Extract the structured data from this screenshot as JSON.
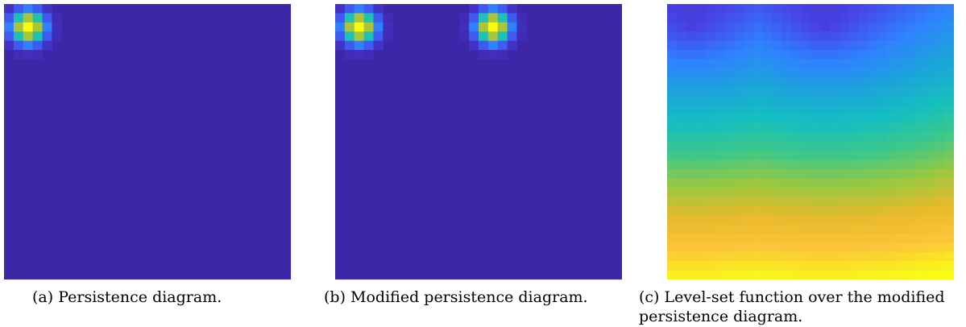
{
  "captions": {
    "a": "(a) Persistence diagram.",
    "b": "(b) Modified persistence diagram.",
    "c": "(c) Level-set function over the modified persistence diagram."
  },
  "colormap": [
    "#3e26a8",
    "#4744e8",
    "#2f82ff",
    "#1ca4da",
    "#15bfbf",
    "#3fc888",
    "#9bc83e",
    "#e9b92c",
    "#fcc63a",
    "#f9fb15"
  ],
  "chart_data": [
    {
      "type": "heatmap",
      "title": "",
      "grid": false,
      "colormap": "parula",
      "value_range": [
        0,
        1
      ],
      "grid_size": [
        30,
        30
      ],
      "background": 0,
      "peaks": [
        {
          "col": 2,
          "row": 2,
          "value": 1.0
        }
      ]
    },
    {
      "type": "heatmap",
      "title": "",
      "grid": false,
      "colormap": "parula",
      "value_range": [
        0,
        1
      ],
      "grid_size": [
        30,
        30
      ],
      "background": 0,
      "peaks": [
        {
          "col": 2,
          "row": 2,
          "value": 1.0
        },
        {
          "col": 16,
          "row": 2,
          "value": 1.0
        }
      ]
    },
    {
      "type": "heatmap",
      "title": "",
      "grid": false,
      "colormap": "parula",
      "value_range": [
        0,
        1
      ],
      "grid_size": [
        30,
        30
      ],
      "description_values": {
        "top_row_min": 0.05,
        "bottom_right_max": 1.0
      }
    }
  ]
}
